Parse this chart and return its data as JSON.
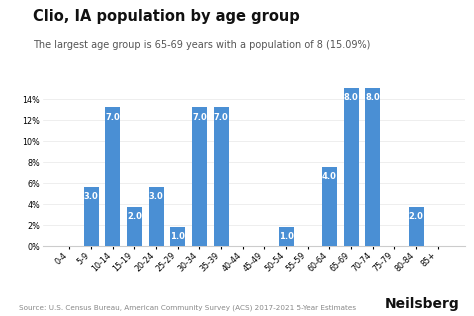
{
  "title": "Clio, IA population by age group",
  "subtitle": "The largest age group is 65-69 years with a population of 8 (15.09%)",
  "source": "Source: U.S. Census Bureau, American Community Survey (ACS) 2017-2021 5-Year Estimates",
  "branding": "Neilsberg",
  "categories": [
    "0-4",
    "5-9",
    "10-14",
    "15-19",
    "20-24",
    "25-29",
    "30-34",
    "35-39",
    "40-44",
    "45-49",
    "50-54",
    "55-59",
    "60-64",
    "65-69",
    "70-74",
    "75-79",
    "80-84",
    "85+"
  ],
  "values": [
    0,
    5.66,
    13.21,
    3.77,
    5.66,
    1.89,
    13.21,
    13.21,
    0,
    0,
    1.89,
    0,
    7.55,
    15.09,
    15.09,
    0,
    3.77,
    0
  ],
  "labels": [
    "",
    "3.0",
    "7.0",
    "2.0",
    "3.0",
    "1.0",
    "7.0",
    "7.0",
    "",
    "",
    "1.0",
    "",
    "4.0",
    "8.0",
    "8.0",
    "",
    "2.0",
    ""
  ],
  "bar_color": "#4a8fd4",
  "ylim_max": 16.5,
  "ytick_vals": [
    0,
    2,
    4,
    6,
    8,
    10,
    12,
    14
  ],
  "background_color": "#ffffff",
  "grid_color": "#e8e8e8",
  "title_fontsize": 10.5,
  "subtitle_fontsize": 7,
  "label_fontsize": 6,
  "tick_fontsize": 5.8,
  "source_fontsize": 5.2,
  "brand_fontsize": 10
}
